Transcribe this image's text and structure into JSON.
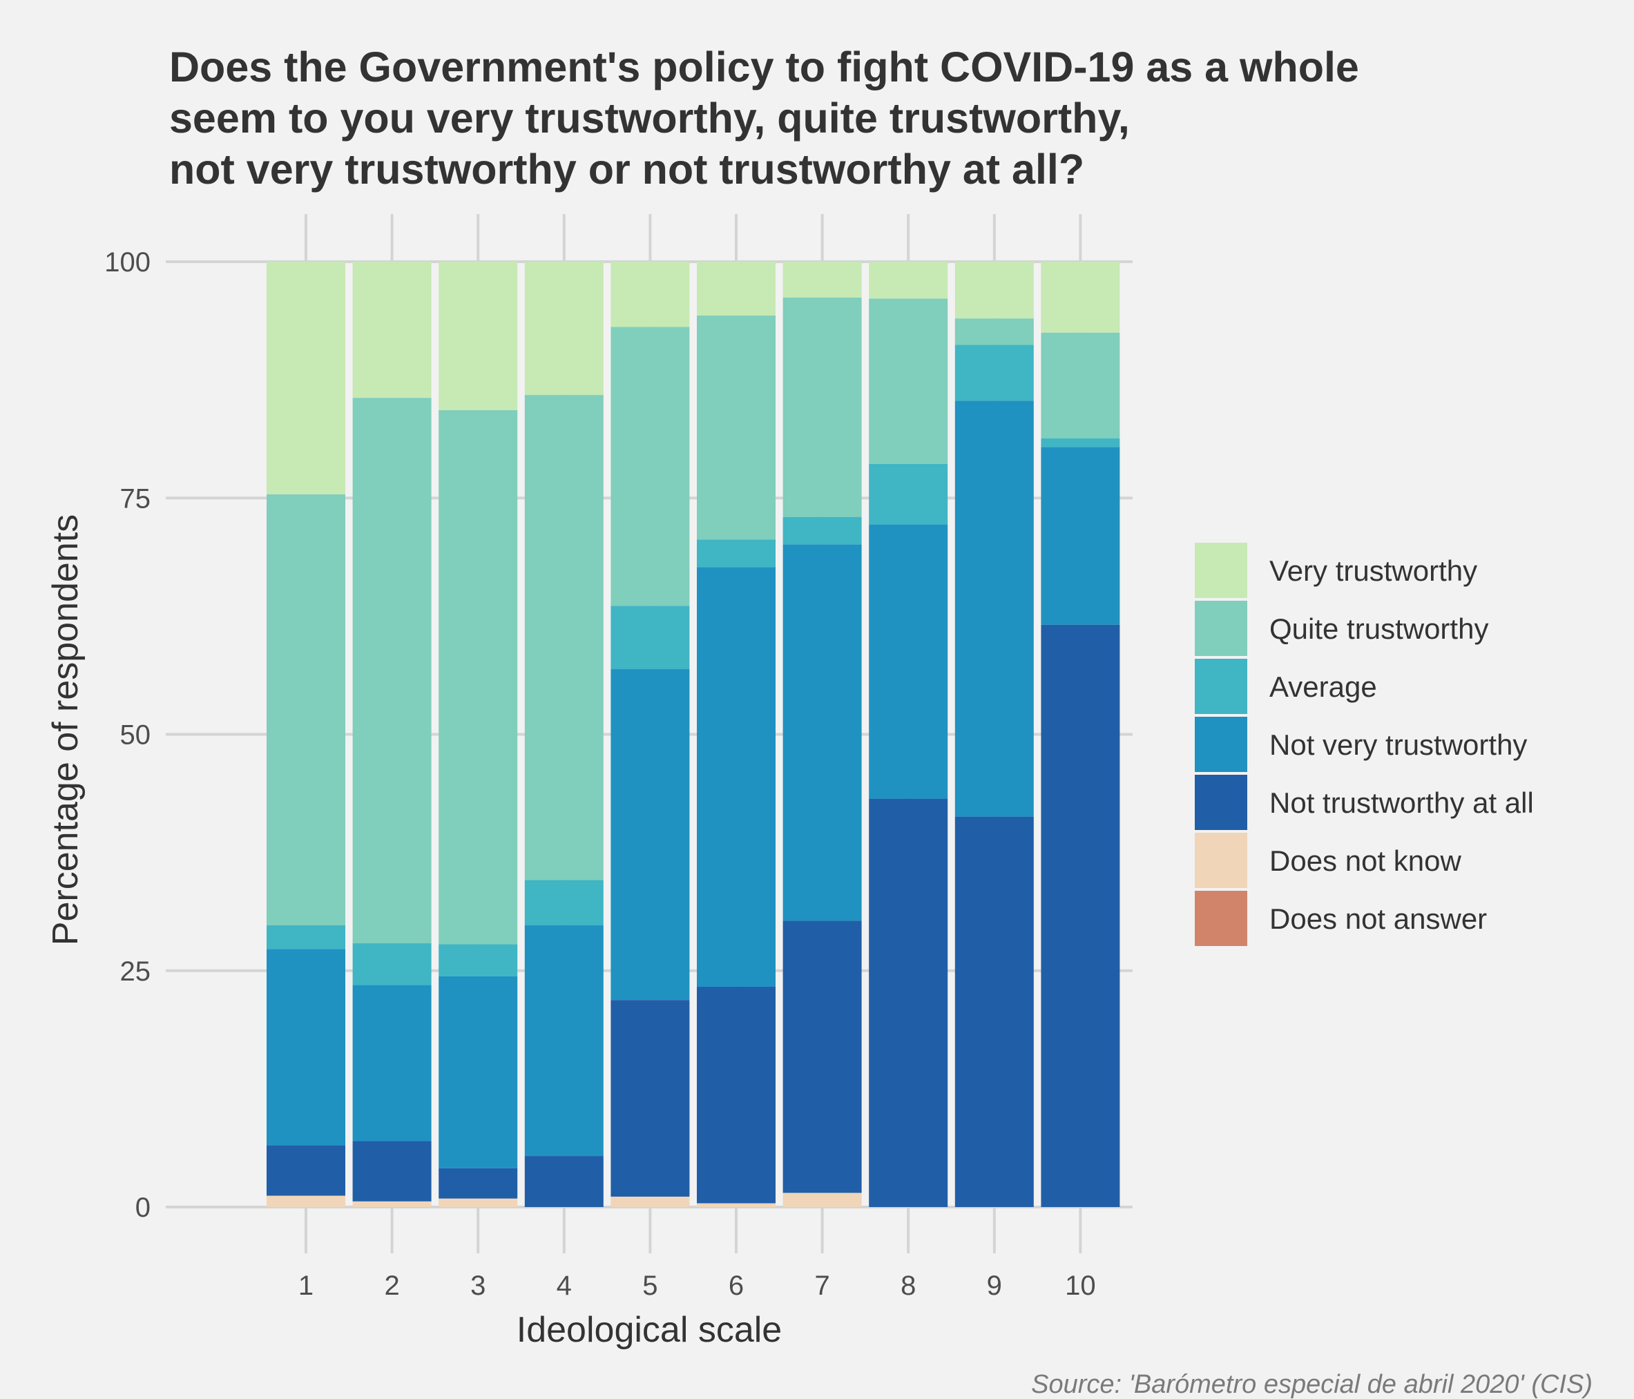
{
  "chart_data": {
    "type": "bar",
    "stacked": true,
    "title_lines": [
      "Does the Government's policy to fight COVID-19 as a whole",
      "seem to you very trustworthy, quite trustworthy,",
      "not very trustworthy or not trustworthy at all?"
    ],
    "xlabel": "Ideological scale",
    "ylabel": "Percentage of respondents",
    "caption": "Source: 'Barómetro especial de abril 2020' (CIS)",
    "categories": [
      "1",
      "2",
      "3",
      "4",
      "5",
      "6",
      "7",
      "8",
      "9",
      "10"
    ],
    "ylim": [
      0,
      100
    ],
    "yticks": [
      "0",
      "25",
      "50",
      "75",
      "100"
    ],
    "grid": true,
    "legend_position": "right",
    "series": [
      {
        "name": "Does not answer",
        "color": "#d2846a",
        "values": [
          0,
          0,
          0,
          0,
          0,
          0,
          0,
          0,
          0,
          0
        ]
      },
      {
        "name": "Does not know",
        "color": "#f0d5b8",
        "values": [
          1.2,
          0.6,
          0.9,
          0,
          1.1,
          0.4,
          1.5,
          0,
          0,
          0
        ]
      },
      {
        "name": "Not trustworthy at all",
        "color": "#215ea8",
        "values": [
          5.3,
          6.4,
          3.2,
          5.4,
          20.8,
          22.9,
          28.8,
          43.2,
          41.3,
          61.6
        ]
      },
      {
        "name": "Not very trustworthy",
        "color": "#1f92c1",
        "values": [
          20.8,
          16.5,
          20.3,
          24.4,
          35.0,
          44.4,
          39.8,
          29.0,
          44.0,
          18.8
        ]
      },
      {
        "name": "Average",
        "color": "#40b5c4",
        "values": [
          2.5,
          4.4,
          3.4,
          4.8,
          6.7,
          2.9,
          2.9,
          6.4,
          5.9,
          0.9
        ]
      },
      {
        "name": "Quite trustworthy",
        "color": "#80cebc",
        "values": [
          45.6,
          57.7,
          56.5,
          51.3,
          29.5,
          23.7,
          23.2,
          17.5,
          2.8,
          11.2
        ]
      },
      {
        "name": "Very trustworthy",
        "color": "#c7e9b4",
        "values": [
          24.6,
          14.4,
          15.7,
          14.1,
          6.9,
          5.7,
          3.8,
          3.9,
          6.0,
          7.5
        ]
      }
    ],
    "legend_order": [
      "Very trustworthy",
      "Quite trustworthy",
      "Average",
      "Not very trustworthy",
      "Not trustworthy at all",
      "Does not know",
      "Does not answer"
    ]
  }
}
